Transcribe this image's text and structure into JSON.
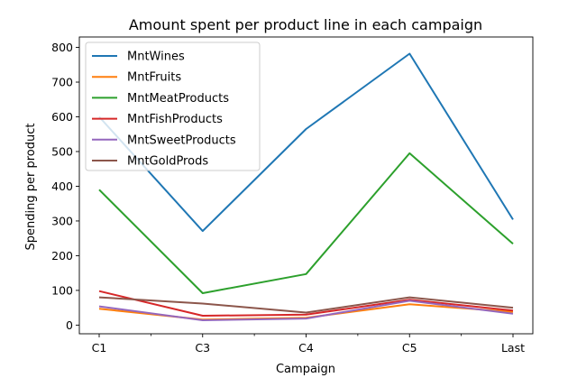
{
  "chart_data": {
    "type": "line",
    "title": "Amount spent per product line in each campaign",
    "xlabel": "Campaign",
    "ylabel": "Spending per product",
    "categories": [
      "C1",
      "C3",
      "C4",
      "C5",
      "Last"
    ],
    "ylim": [
      -25,
      830
    ],
    "yticks": [
      0,
      100,
      200,
      300,
      400,
      500,
      600,
      700,
      800
    ],
    "grid": false,
    "legend_position": "top-left",
    "series": [
      {
        "name": "MntWines",
        "color": "#1f77b4",
        "values": [
          600,
          271,
          565,
          782,
          304
        ]
      },
      {
        "name": "MntFruits",
        "color": "#ff7f0e",
        "values": [
          47,
          16,
          21,
          60,
          38
        ]
      },
      {
        "name": "MntMeatProducts",
        "color": "#2ca02c",
        "values": [
          390,
          92,
          147,
          495,
          234
        ]
      },
      {
        "name": "MntFishProducts",
        "color": "#d62728",
        "values": [
          98,
          27,
          30,
          73,
          42
        ]
      },
      {
        "name": "MntSweetProducts",
        "color": "#9467bd",
        "values": [
          54,
          14,
          19,
          70,
          33
        ]
      },
      {
        "name": "MntGoldProds",
        "color": "#8c564b",
        "values": [
          80,
          62,
          36,
          80,
          50
        ]
      }
    ]
  }
}
